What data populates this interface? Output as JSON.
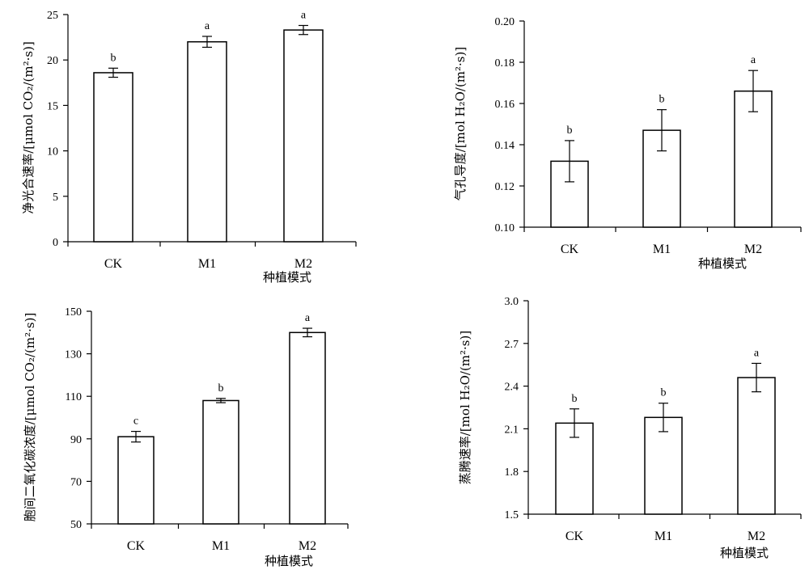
{
  "chart_data": [
    {
      "type": "bar",
      "categories": [
        "CK",
        "M1",
        "M2"
      ],
      "values": [
        18.6,
        22.0,
        23.3
      ],
      "errors": [
        0.5,
        0.6,
        0.5
      ],
      "significance": [
        "b",
        "a",
        "a"
      ],
      "xlabel": "种植模式",
      "ylabel": "净光合速率/[μmol CO₂/(m²·s)]",
      "ylim": [
        0,
        25
      ],
      "yticks": [
        "0",
        "5",
        "10",
        "15",
        "20",
        "25"
      ]
    },
    {
      "type": "bar",
      "categories": [
        "CK",
        "M1",
        "M2"
      ],
      "values": [
        0.132,
        0.147,
        0.166
      ],
      "errors": [
        0.01,
        0.01,
        0.01
      ],
      "significance": [
        "b",
        "b",
        "a"
      ],
      "xlabel": "种植模式",
      "ylabel": "气孔导度/[mol H₂O/(m²·s)]",
      "ylim": [
        0.1,
        0.2
      ],
      "yticks": [
        "0.10",
        "0.12",
        "0.14",
        "0.16",
        "0.18",
        "0.20"
      ]
    },
    {
      "type": "bar",
      "categories": [
        "CK",
        "M1",
        "M2"
      ],
      "values": [
        91,
        108,
        140
      ],
      "errors": [
        2.5,
        1.0,
        2.0
      ],
      "significance": [
        "c",
        "b",
        "a"
      ],
      "xlabel": "种植模式",
      "ylabel": "胞间二氧化碳浓度/[μmol CO₂/(m²·s)]",
      "ylim": [
        50,
        150
      ],
      "yticks": [
        "50",
        "70",
        "90",
        "110",
        "130",
        "150"
      ]
    },
    {
      "type": "bar",
      "categories": [
        "CK",
        "M1",
        "M2"
      ],
      "values": [
        2.14,
        2.18,
        2.46
      ],
      "errors": [
        0.1,
        0.1,
        0.1
      ],
      "significance": [
        "b",
        "b",
        "a"
      ],
      "xlabel": "种植模式",
      "ylabel": "蒸腾速率/[mol H₂O/(m²·s)]",
      "ylim": [
        1.5,
        3.0
      ],
      "yticks": [
        "1.5",
        "1.8",
        "2.1",
        "2.4",
        "2.7",
        "3.0"
      ]
    }
  ]
}
